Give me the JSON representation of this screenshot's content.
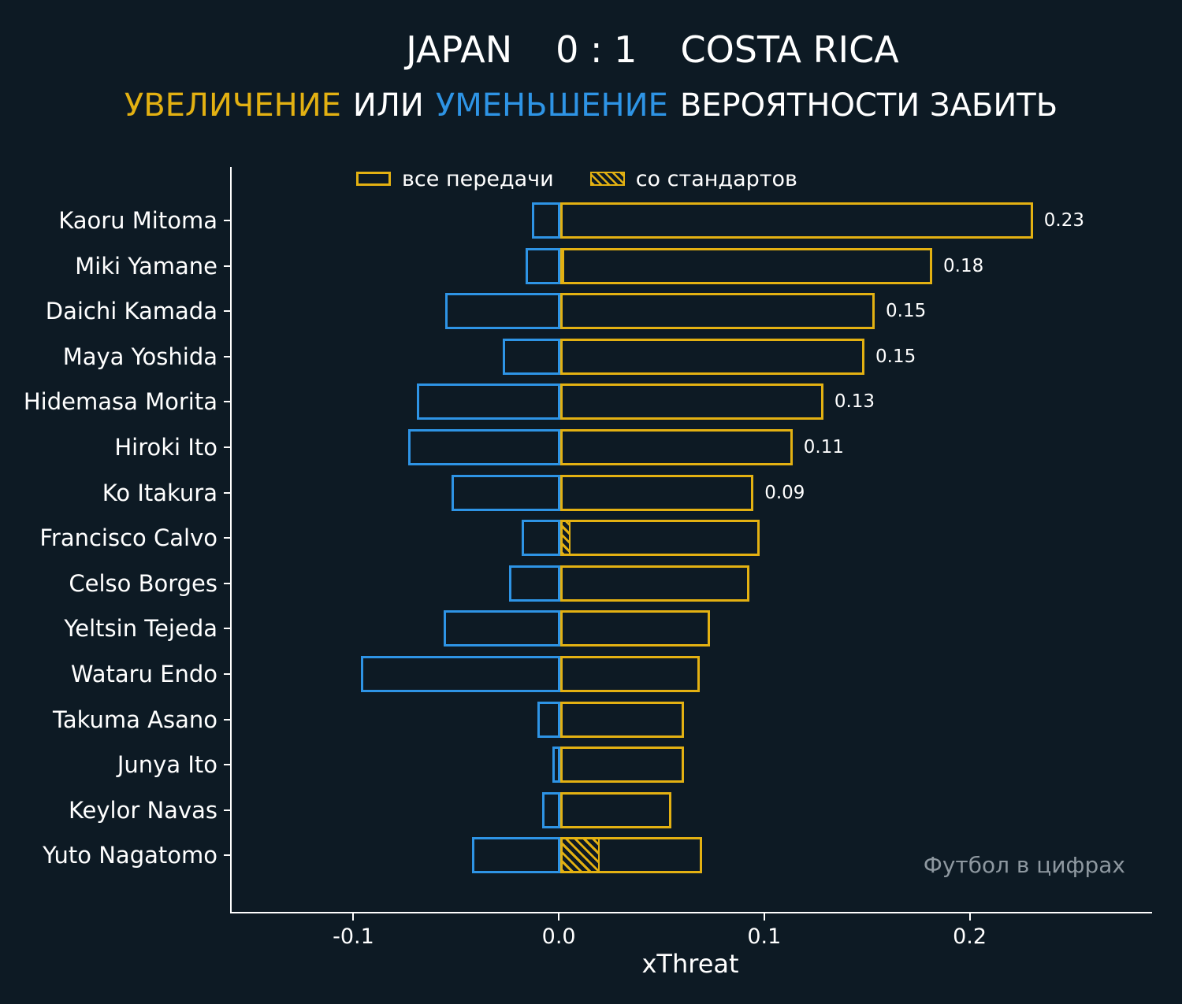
{
  "header": {
    "title_home": "JAPAN",
    "title_score": "0 : 1",
    "title_away": "COSTA RICA",
    "subtitle_increase": "УВЕЛИЧЕНИЕ",
    "subtitle_or": "ИЛИ",
    "subtitle_decrease": "УМЕНЬШЕНИЕ",
    "subtitle_rest": "ВЕРОЯТНОСТИ ЗАБИТЬ"
  },
  "legend": {
    "all_passes": "все передачи",
    "set_pieces": "со стандартов"
  },
  "watermark": "Футбол в цифрах",
  "colors": {
    "background": "#0d1a24",
    "increase": "#e3b112",
    "decrease": "#2e94e5",
    "text": "#ffffff",
    "watermark": "#8e98a0"
  },
  "chart_data": {
    "type": "bar",
    "orientation": "horizontal",
    "title": "JAPAN 0 : 1 COSTA RICA",
    "subtitle": "УВЕЛИЧЕНИЕ ИЛИ УМЕНЬШЕНИЕ ВЕРОЯТНОСТИ ЗАБИТЬ",
    "legend": [
      "все передачи",
      "со стандартов"
    ],
    "xlabel": "xThreat",
    "xlim": [
      -0.16,
      0.288
    ],
    "grid": false,
    "xticks": [
      {
        "value": -0.1,
        "label": "-0.1"
      },
      {
        "value": 0.0,
        "label": "0.0"
      },
      {
        "value": 0.1,
        "label": "0.1"
      },
      {
        "value": 0.2,
        "label": "0.2"
      }
    ],
    "players": [
      {
        "name": "Kaoru Mitoma",
        "positive": 0.23,
        "negative": -0.014,
        "set_piece": 0,
        "label": "0.23"
      },
      {
        "name": "Miki Yamane",
        "positive": 0.181,
        "negative": -0.017,
        "set_piece": 0.002,
        "label": "0.18"
      },
      {
        "name": "Daichi Kamada",
        "positive": 0.153,
        "negative": -0.056,
        "set_piece": 0,
        "label": "0.15"
      },
      {
        "name": "Maya Yoshida",
        "positive": 0.148,
        "negative": -0.028,
        "set_piece": 0,
        "label": "0.15"
      },
      {
        "name": "Hidemasa Morita",
        "positive": 0.128,
        "negative": -0.07,
        "set_piece": 0,
        "label": "0.13"
      },
      {
        "name": "Hiroki Ito",
        "positive": 0.113,
        "negative": -0.074,
        "set_piece": 0,
        "label": "0.11"
      },
      {
        "name": "Ko Itakura",
        "positive": 0.094,
        "negative": -0.053,
        "set_piece": 0,
        "label": "0.09"
      },
      {
        "name": "Francisco Calvo",
        "positive": 0.097,
        "negative": -0.019,
        "set_piece": 0.005,
        "label": ""
      },
      {
        "name": "Celso Borges",
        "positive": 0.092,
        "negative": -0.025,
        "set_piece": 0,
        "label": ""
      },
      {
        "name": "Yeltsin Tejeda",
        "positive": 0.073,
        "negative": -0.057,
        "set_piece": 0,
        "label": ""
      },
      {
        "name": "Wataru Endo",
        "positive": 0.068,
        "negative": -0.097,
        "set_piece": 0,
        "label": ""
      },
      {
        "name": "Takuma Asano",
        "positive": 0.06,
        "negative": -0.011,
        "set_piece": 0,
        "label": ""
      },
      {
        "name": "Junya Ito",
        "positive": 0.06,
        "negative": -0.004,
        "set_piece": 0,
        "label": ""
      },
      {
        "name": "Keylor Navas",
        "positive": 0.054,
        "negative": -0.009,
        "set_piece": 0,
        "label": ""
      },
      {
        "name": "Yuto Nagatomo",
        "positive": 0.069,
        "negative": -0.043,
        "set_piece": 0.019,
        "label": ""
      }
    ]
  }
}
